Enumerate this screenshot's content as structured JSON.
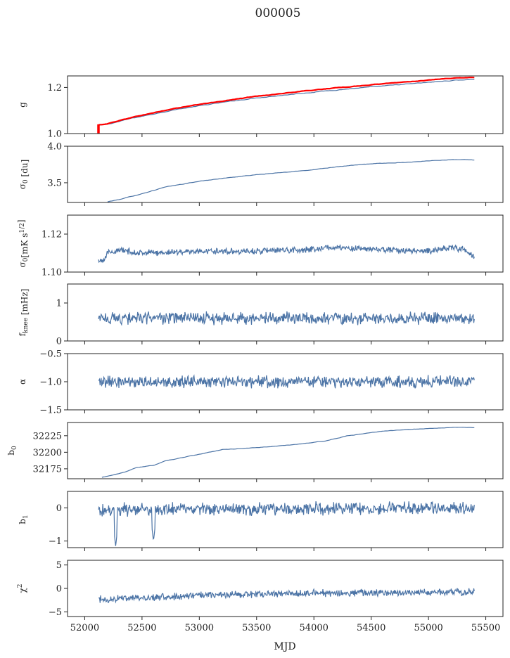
{
  "title": "000005",
  "colors": {
    "series": "#4c74a6",
    "fit": "#ff0000",
    "axis": "#222222"
  },
  "chart_data": {
    "type": "line",
    "title": "000005",
    "xlabel": "MJD",
    "xlim": [
      51850,
      55650
    ],
    "xticks": [
      52000,
      52500,
      53000,
      53500,
      54000,
      54500,
      55000,
      55500
    ],
    "x_range": [
      52120,
      55400
    ],
    "panels": [
      {
        "ylabel": "g",
        "ylim": [
          1.0,
          1.25
        ],
        "yticks": [
          {
            "v": 1.0,
            "label": "1.0"
          },
          {
            "v": 1.2,
            "label": "1.2"
          }
        ],
        "series": [
          {
            "style": "trend",
            "x": [
              52120,
              52200,
              52400,
              52600,
              52800,
              53000,
              53200,
              53500,
              53800,
              54100,
              54400,
              54700,
              55000,
              55250,
              55400
            ],
            "values": [
              1.035,
              1.04,
              1.065,
              1.085,
              1.105,
              1.12,
              1.135,
              1.155,
              1.17,
              1.185,
              1.198,
              1.21,
              1.222,
              1.232,
              1.235
            ],
            "noise": 0.002
          },
          {
            "style": "fit",
            "x": [
              52120,
              52200,
              52400,
              52600,
              52800,
              53000,
              53200,
              53500,
              53800,
              54100,
              54400,
              54700,
              55000,
              55250,
              55400
            ],
            "values": [
              1.037,
              1.043,
              1.069,
              1.09,
              1.11,
              1.126,
              1.141,
              1.162,
              1.178,
              1.194,
              1.207,
              1.22,
              1.232,
              1.241,
              1.244
            ],
            "noise": 0.0015,
            "spike": {
              "x": 52120,
              "from": 1.0,
              "to": 1.04
            }
          }
        ]
      },
      {
        "ylabel": "σ0 [du]",
        "ylim": [
          3.23,
          4.0
        ],
        "yticks": [
          {
            "v": 3.5,
            "label": "3.5"
          },
          {
            "v": 4.0,
            "label": "4.0"
          }
        ],
        "series": [
          {
            "style": "trend",
            "x": [
              52200,
              52300,
              52500,
              52700,
              53000,
              53200,
              53500,
              53800,
              54000,
              54200,
              54500,
              54800,
              55100,
              55300,
              55400
            ],
            "values": [
              3.24,
              3.27,
              3.35,
              3.44,
              3.52,
              3.56,
              3.61,
              3.65,
              3.68,
              3.72,
              3.76,
              3.78,
              3.81,
              3.82,
              3.81
            ],
            "noise": 0.004
          }
        ]
      },
      {
        "ylabel": "σ0[mK s1/2]",
        "ylim": [
          1.1,
          1.13
        ],
        "yticks": [
          {
            "v": 1.1,
            "label": "1.10"
          },
          {
            "v": 1.12,
            "label": "1.12"
          }
        ],
        "series": [
          {
            "style": "noise",
            "x": [
              52120,
              52170,
              52200,
              52300,
              52500,
              53000,
              53500,
              54000,
              54100,
              54500,
              55000,
              55200,
              55300,
              55400
            ],
            "values": [
              1.106,
              1.107,
              1.11,
              1.1115,
              1.11,
              1.111,
              1.111,
              1.112,
              1.113,
              1.112,
              1.111,
              1.113,
              1.112,
              1.108
            ],
            "noise": 0.0012
          }
        ]
      },
      {
        "ylabel": "fknee [mHz]",
        "ylim": [
          0.0,
          1.5
        ],
        "yticks": [
          {
            "v": 0,
            "label": "0"
          },
          {
            "v": 1,
            "label": "1"
          }
        ],
        "series": [
          {
            "style": "noise",
            "x": [
              52120,
              55400
            ],
            "values": [
              0.6,
              0.6
            ],
            "noise": 0.12
          }
        ]
      },
      {
        "ylabel": "α",
        "ylim": [
          -1.5,
          -0.5
        ],
        "yticks": [
          {
            "v": -1.5,
            "label": "−1.5"
          },
          {
            "v": -1.0,
            "label": "−1.0"
          },
          {
            "v": -0.5,
            "label": "−0.5"
          }
        ],
        "series": [
          {
            "style": "noise",
            "x": [
              52120,
              55400
            ],
            "values": [
              -1.0,
              -1.0
            ],
            "noise": 0.08
          }
        ]
      },
      {
        "ylabel": "b0",
        "ylim": [
          32160,
          32245
        ],
        "yticks": [
          {
            "v": 32175,
            "label": "32175"
          },
          {
            "v": 32200,
            "label": "32200"
          },
          {
            "v": 32225,
            "label": "32225"
          }
        ],
        "series": [
          {
            "style": "trend",
            "x": [
              52150,
              52350,
              52450,
              52600,
              52700,
              53000,
              53200,
              53500,
              53800,
              54100,
              54300,
              54600,
              55000,
              55300,
              55400
            ],
            "values": [
              32162,
              32170,
              32177,
              32180,
              32187,
              32197,
              32204,
              32207,
              32211,
              32217,
              32225,
              32232,
              32236,
              32238,
              32237
            ],
            "noise": 0.4
          }
        ]
      },
      {
        "ylabel": "b1",
        "ylim": [
          -1.2,
          0.5
        ],
        "yticks": [
          {
            "v": -1,
            "label": "−1"
          },
          {
            "v": 0,
            "label": "0"
          }
        ],
        "series": [
          {
            "style": "noise",
            "x": [
              52120,
              55400
            ],
            "values": [
              -0.05,
              0.0
            ],
            "noise": 0.14,
            "dips": [
              {
                "x": 52270,
                "v": -1.15
              },
              {
                "x": 52600,
                "v": -1.0
              }
            ]
          }
        ]
      },
      {
        "ylabel": "χ2",
        "ylim": [
          -6,
          6
        ],
        "yticks": [
          {
            "v": -5,
            "label": "−5"
          },
          {
            "v": 0,
            "label": "0"
          },
          {
            "v": 5,
            "label": "5"
          }
        ],
        "series": [
          {
            "style": "noise",
            "x": [
              52120,
              52500,
              53000,
              53500,
              54000,
              55400
            ],
            "values": [
              -2.3,
              -2.0,
              -1.5,
              -1.2,
              -1.0,
              -0.8
            ],
            "noise": 0.55
          }
        ]
      }
    ]
  }
}
